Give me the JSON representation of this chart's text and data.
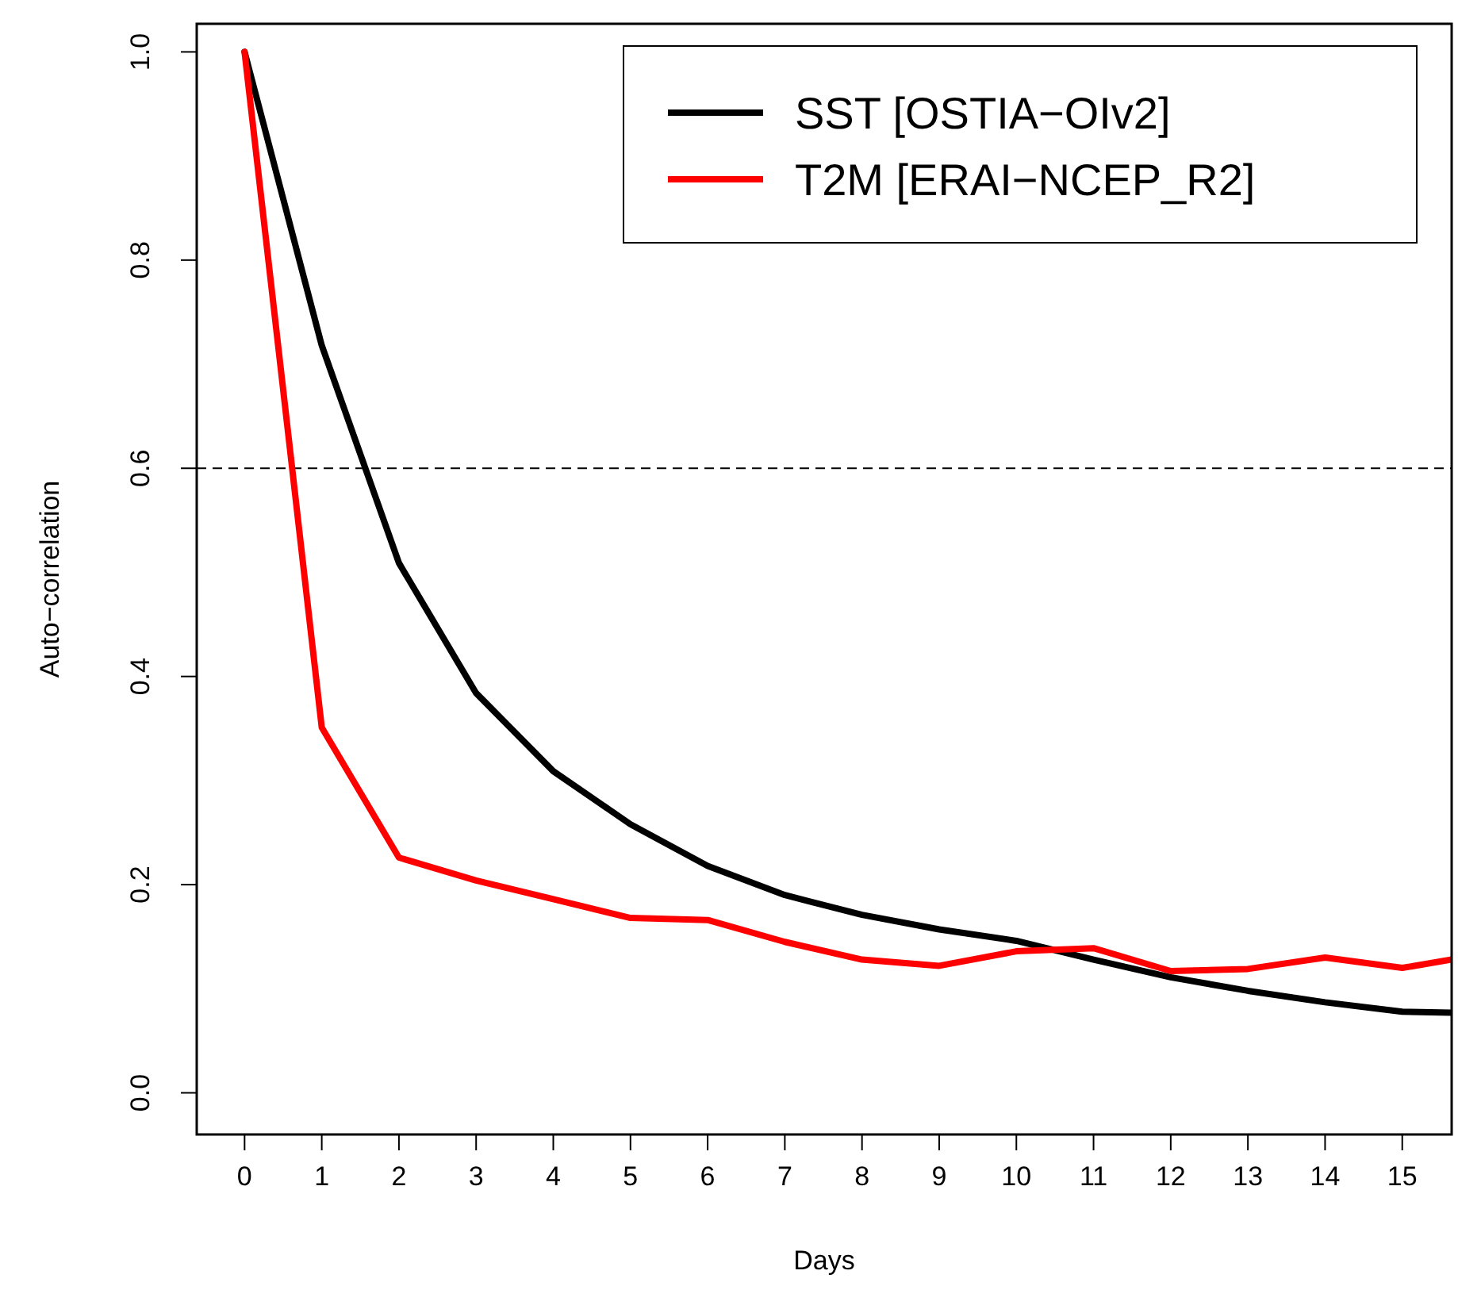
{
  "chart_data": {
    "type": "line",
    "xlabel": "Days",
    "ylabel": "Auto−correlation",
    "xlim": [
      -0.62,
      15.64
    ],
    "ylim": [
      -0.04,
      1.027
    ],
    "xticks": [
      0,
      1,
      2,
      3,
      4,
      5,
      6,
      7,
      8,
      9,
      10,
      11,
      12,
      13,
      14,
      15
    ],
    "yticks": [
      {
        "value": 0,
        "label": "0.0"
      },
      0.2,
      0.4,
      0.6,
      0.8,
      {
        "value": 1,
        "label": "1.0"
      }
    ],
    "x": [
      0,
      1,
      2,
      3,
      4,
      5,
      6,
      7,
      8,
      9,
      10,
      11,
      12,
      13,
      14,
      15,
      15.64
    ],
    "series": [
      {
        "name": "SST [OSTIA−OIv2]",
        "color": "#000000",
        "values": [
          1.0,
          0.718,
          0.509,
          0.384,
          0.309,
          0.258,
          0.218,
          0.19,
          0.171,
          0.157,
          0.146,
          0.128,
          0.111,
          0.098,
          0.087,
          0.078,
          0.077
        ]
      },
      {
        "name": "T2M [ERAI−NCEP_R2]",
        "color": "#ff0000",
        "values": [
          1.0,
          0.351,
          0.226,
          0.204,
          0.186,
          0.168,
          0.166,
          0.145,
          0.128,
          0.122,
          0.136,
          0.139,
          0.117,
          0.119,
          0.13,
          0.12,
          0.128
        ]
      }
    ],
    "ref_lines": [
      {
        "axis": "y",
        "value": 0.6,
        "color": "#000000",
        "line_style": "dashed"
      }
    ],
    "legend": "top right",
    "grid": false,
    "line_style": "solid"
  }
}
